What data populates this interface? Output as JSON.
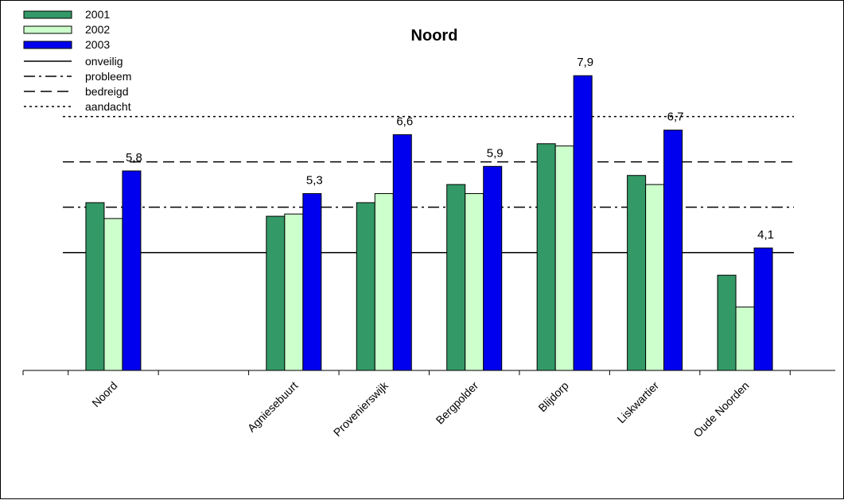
{
  "chart_data": {
    "type": "bar",
    "title": "Noord",
    "categories": [
      "Noord",
      "",
      "Agniesebuurt",
      "Provenierswijk",
      "Bergpolder",
      "Blijdorp",
      "Liskwartier",
      "Oude Noorden"
    ],
    "series": [
      {
        "name": "2001",
        "color": "#339966",
        "values": [
          5.1,
          null,
          4.8,
          5.1,
          5.5,
          6.4,
          5.7,
          3.5
        ]
      },
      {
        "name": "2002",
        "color": "#ccffcc",
        "values": [
          4.75,
          null,
          4.85,
          5.3,
          5.3,
          6.35,
          5.5,
          2.8
        ]
      },
      {
        "name": "2003",
        "color": "#0000ee",
        "values": [
          5.8,
          null,
          5.3,
          6.6,
          5.9,
          7.9,
          6.7,
          4.1
        ]
      }
    ],
    "data_labels": [
      "5,8",
      "",
      "5,3",
      "6,6",
      "5,9",
      "7,9",
      "6,7",
      "4,1"
    ],
    "reference_lines": [
      {
        "name": "onveilig",
        "value": 4,
        "style": "solid"
      },
      {
        "name": "probleem",
        "value": 5,
        "style": "dashdot"
      },
      {
        "name": "bedreigd",
        "value": 6,
        "style": "dashed"
      },
      {
        "name": "aandacht",
        "value": 7,
        "style": "dotted"
      }
    ],
    "ylim": [
      1.4,
      8.5
    ],
    "y_axis_visible": false,
    "grid": false,
    "legend_position": "top-left"
  }
}
